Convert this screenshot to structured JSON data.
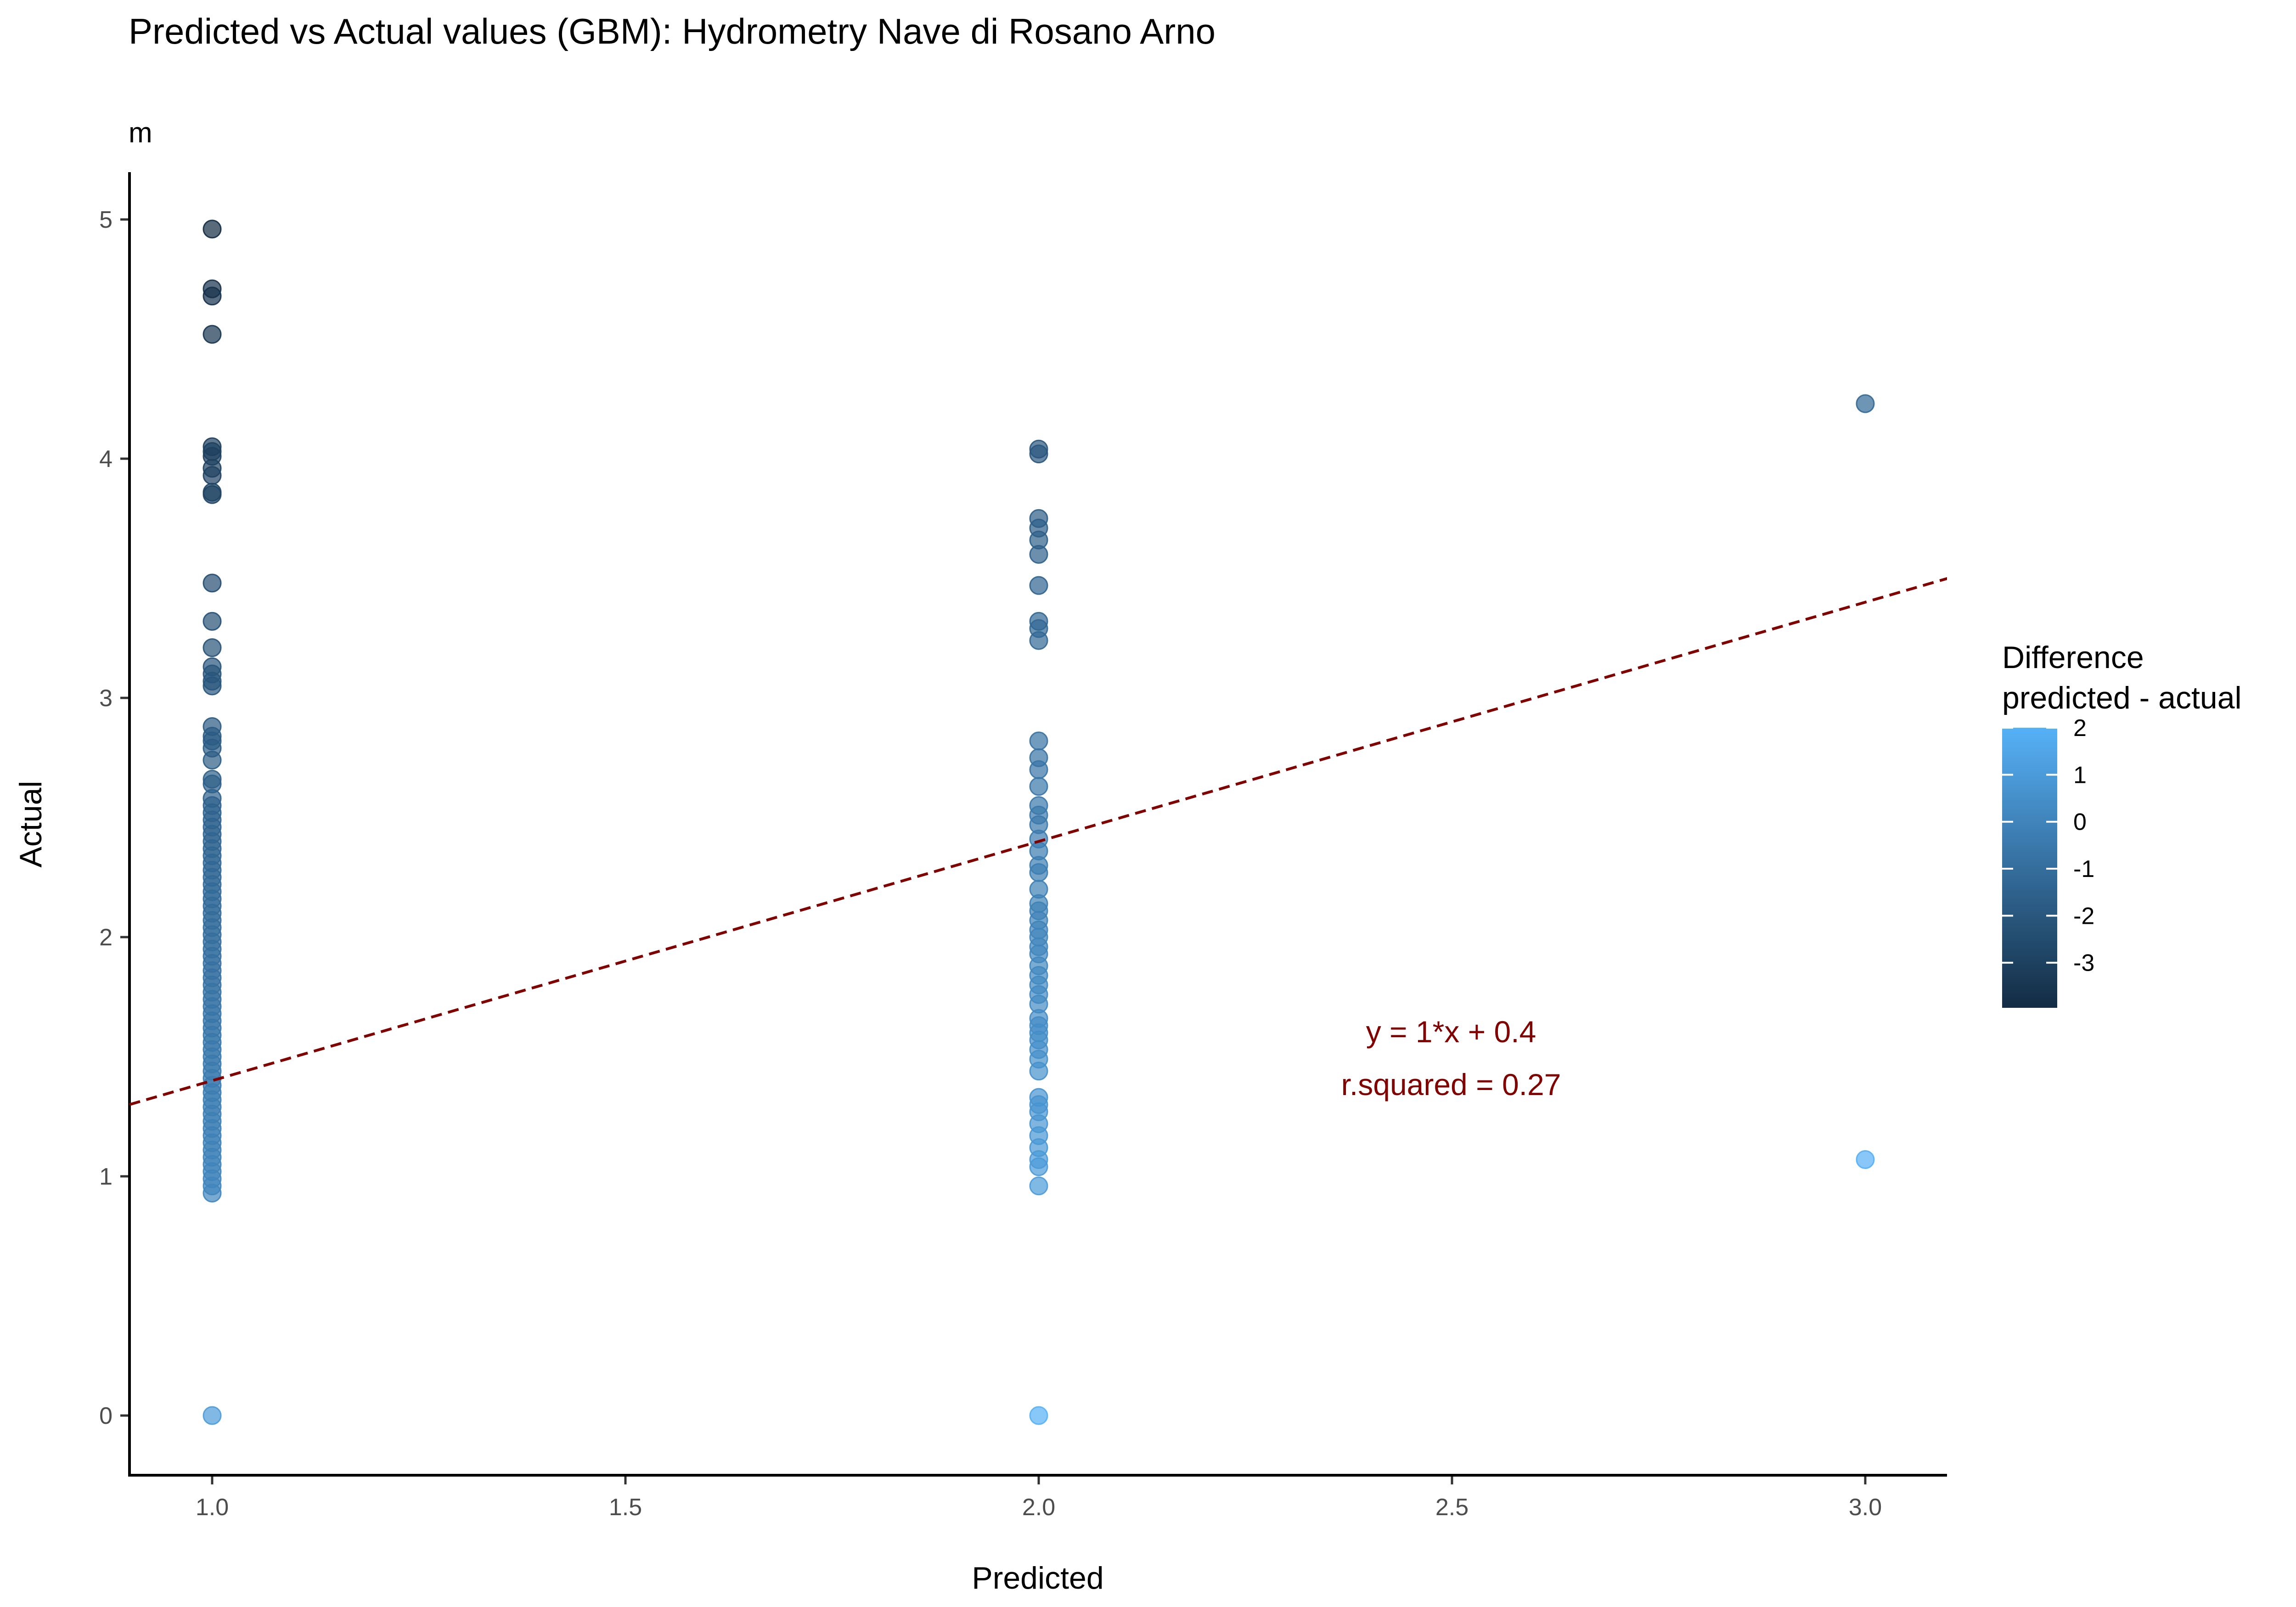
{
  "chart_data": {
    "type": "scatter",
    "title": "Predicted vs Actual values (GBM): Hydrometry Nave di Rosano Arno",
    "subtitle": "m",
    "xlabel": "Predicted",
    "ylabel": "Actual",
    "xlim": [
      0.9,
      3.1
    ],
    "ylim": [
      -0.25,
      5.2
    ],
    "x_ticks": [
      "1.0",
      "1.5",
      "2.0",
      "2.5",
      "3.0"
    ],
    "y_ticks": [
      "0",
      "1",
      "2",
      "3",
      "4",
      "5"
    ],
    "grid": false,
    "legend": {
      "title_line1": "Difference",
      "title_line2": "predicted - actual",
      "placement": "right",
      "range": [
        -3.96,
        2
      ],
      "labels": [
        "2",
        "1",
        "0",
        "-1",
        "-2",
        "-3"
      ],
      "color_low": "#132B43",
      "color_high": "#56B1F7"
    },
    "fit_line": {
      "slope": 1,
      "intercept": 0.4,
      "color": "#800000",
      "style": "dashed"
    },
    "annotation": {
      "line1": "y = 1*x + 0.4",
      "line2": "r.squared = 0.27"
    },
    "point_alpha": 0.7,
    "points": [
      {
        "x": 1,
        "y": 4.96
      },
      {
        "x": 1,
        "y": 4.71
      },
      {
        "x": 1,
        "y": 4.68
      },
      {
        "x": 1,
        "y": 4.52
      },
      {
        "x": 1,
        "y": 4.05
      },
      {
        "x": 1,
        "y": 4.03
      },
      {
        "x": 1,
        "y": 4.01
      },
      {
        "x": 1,
        "y": 3.96
      },
      {
        "x": 1,
        "y": 3.93
      },
      {
        "x": 1,
        "y": 3.86
      },
      {
        "x": 1,
        "y": 3.85
      },
      {
        "x": 1,
        "y": 3.48
      },
      {
        "x": 1,
        "y": 3.32
      },
      {
        "x": 1,
        "y": 3.21
      },
      {
        "x": 1,
        "y": 3.13
      },
      {
        "x": 1,
        "y": 3.1
      },
      {
        "x": 1,
        "y": 3.07
      },
      {
        "x": 1,
        "y": 3.05
      },
      {
        "x": 1,
        "y": 2.88
      },
      {
        "x": 1,
        "y": 2.84
      },
      {
        "x": 1,
        "y": 2.82
      },
      {
        "x": 1,
        "y": 2.79
      },
      {
        "x": 1,
        "y": 2.74
      },
      {
        "x": 1,
        "y": 2.66
      },
      {
        "x": 1,
        "y": 2.64
      },
      {
        "x": 1,
        "y": 2.58
      },
      {
        "x": 1,
        "y": 2.55
      },
      {
        "x": 1,
        "y": 2.52
      },
      {
        "x": 1,
        "y": 2.49
      },
      {
        "x": 1,
        "y": 2.46
      },
      {
        "x": 1,
        "y": 2.43
      },
      {
        "x": 1,
        "y": 2.4
      },
      {
        "x": 1,
        "y": 2.37
      },
      {
        "x": 1,
        "y": 2.34
      },
      {
        "x": 1,
        "y": 2.31
      },
      {
        "x": 1,
        "y": 2.28
      },
      {
        "x": 1,
        "y": 2.25
      },
      {
        "x": 1,
        "y": 2.22
      },
      {
        "x": 1,
        "y": 2.19
      },
      {
        "x": 1,
        "y": 2.16
      },
      {
        "x": 1,
        "y": 2.13
      },
      {
        "x": 1,
        "y": 2.1
      },
      {
        "x": 1,
        "y": 2.07
      },
      {
        "x": 1,
        "y": 2.04
      },
      {
        "x": 1,
        "y": 2.01
      },
      {
        "x": 1,
        "y": 1.98
      },
      {
        "x": 1,
        "y": 1.95
      },
      {
        "x": 1,
        "y": 1.92
      },
      {
        "x": 1,
        "y": 1.89
      },
      {
        "x": 1,
        "y": 1.86
      },
      {
        "x": 1,
        "y": 1.83
      },
      {
        "x": 1,
        "y": 1.8
      },
      {
        "x": 1,
        "y": 1.77
      },
      {
        "x": 1,
        "y": 1.74
      },
      {
        "x": 1,
        "y": 1.71
      },
      {
        "x": 1,
        "y": 1.68
      },
      {
        "x": 1,
        "y": 1.65
      },
      {
        "x": 1,
        "y": 1.62
      },
      {
        "x": 1,
        "y": 1.59
      },
      {
        "x": 1,
        "y": 1.56
      },
      {
        "x": 1,
        "y": 1.53
      },
      {
        "x": 1,
        "y": 1.5
      },
      {
        "x": 1,
        "y": 1.47
      },
      {
        "x": 1,
        "y": 1.44
      },
      {
        "x": 1,
        "y": 1.41
      },
      {
        "x": 1,
        "y": 1.38
      },
      {
        "x": 1,
        "y": 1.35
      },
      {
        "x": 1,
        "y": 1.32
      },
      {
        "x": 1,
        "y": 1.29
      },
      {
        "x": 1,
        "y": 1.26
      },
      {
        "x": 1,
        "y": 1.23
      },
      {
        "x": 1,
        "y": 1.2
      },
      {
        "x": 1,
        "y": 1.17
      },
      {
        "x": 1,
        "y": 1.14
      },
      {
        "x": 1,
        "y": 1.11
      },
      {
        "x": 1,
        "y": 1.08
      },
      {
        "x": 1,
        "y": 1.05
      },
      {
        "x": 1,
        "y": 1.02
      },
      {
        "x": 1,
        "y": 0.99
      },
      {
        "x": 1,
        "y": 0.96
      },
      {
        "x": 1,
        "y": 0.93
      },
      {
        "x": 1,
        "y": 0
      },
      {
        "x": 2,
        "y": 4.04
      },
      {
        "x": 2,
        "y": 4.02
      },
      {
        "x": 2,
        "y": 3.75
      },
      {
        "x": 2,
        "y": 3.71
      },
      {
        "x": 2,
        "y": 3.66
      },
      {
        "x": 2,
        "y": 3.6
      },
      {
        "x": 2,
        "y": 3.47
      },
      {
        "x": 2,
        "y": 3.32
      },
      {
        "x": 2,
        "y": 3.29
      },
      {
        "x": 2,
        "y": 3.24
      },
      {
        "x": 2,
        "y": 2.82
      },
      {
        "x": 2,
        "y": 2.75
      },
      {
        "x": 2,
        "y": 2.7
      },
      {
        "x": 2,
        "y": 2.63
      },
      {
        "x": 2,
        "y": 2.55
      },
      {
        "x": 2,
        "y": 2.51
      },
      {
        "x": 2,
        "y": 2.47
      },
      {
        "x": 2,
        "y": 2.41
      },
      {
        "x": 2,
        "y": 2.36
      },
      {
        "x": 2,
        "y": 2.3
      },
      {
        "x": 2,
        "y": 2.27
      },
      {
        "x": 2,
        "y": 2.2
      },
      {
        "x": 2,
        "y": 2.14
      },
      {
        "x": 2,
        "y": 2.11
      },
      {
        "x": 2,
        "y": 2.07
      },
      {
        "x": 2,
        "y": 2.03
      },
      {
        "x": 2,
        "y": 2.0
      },
      {
        "x": 2,
        "y": 1.96
      },
      {
        "x": 2,
        "y": 1.93
      },
      {
        "x": 2,
        "y": 1.88
      },
      {
        "x": 2,
        "y": 1.84
      },
      {
        "x": 2,
        "y": 1.8
      },
      {
        "x": 2,
        "y": 1.76
      },
      {
        "x": 2,
        "y": 1.72
      },
      {
        "x": 2,
        "y": 1.66
      },
      {
        "x": 2,
        "y": 1.63
      },
      {
        "x": 2,
        "y": 1.6
      },
      {
        "x": 2,
        "y": 1.57
      },
      {
        "x": 2,
        "y": 1.53
      },
      {
        "x": 2,
        "y": 1.49
      },
      {
        "x": 2,
        "y": 1.44
      },
      {
        "x": 2,
        "y": 1.33
      },
      {
        "x": 2,
        "y": 1.3
      },
      {
        "x": 2,
        "y": 1.27
      },
      {
        "x": 2,
        "y": 1.22
      },
      {
        "x": 2,
        "y": 1.17
      },
      {
        "x": 2,
        "y": 1.12
      },
      {
        "x": 2,
        "y": 1.07
      },
      {
        "x": 2,
        "y": 1.04
      },
      {
        "x": 2,
        "y": 0.96
      },
      {
        "x": 2,
        "y": 0
      },
      {
        "x": 3,
        "y": 4.23
      },
      {
        "x": 3,
        "y": 1.07
      }
    ]
  }
}
